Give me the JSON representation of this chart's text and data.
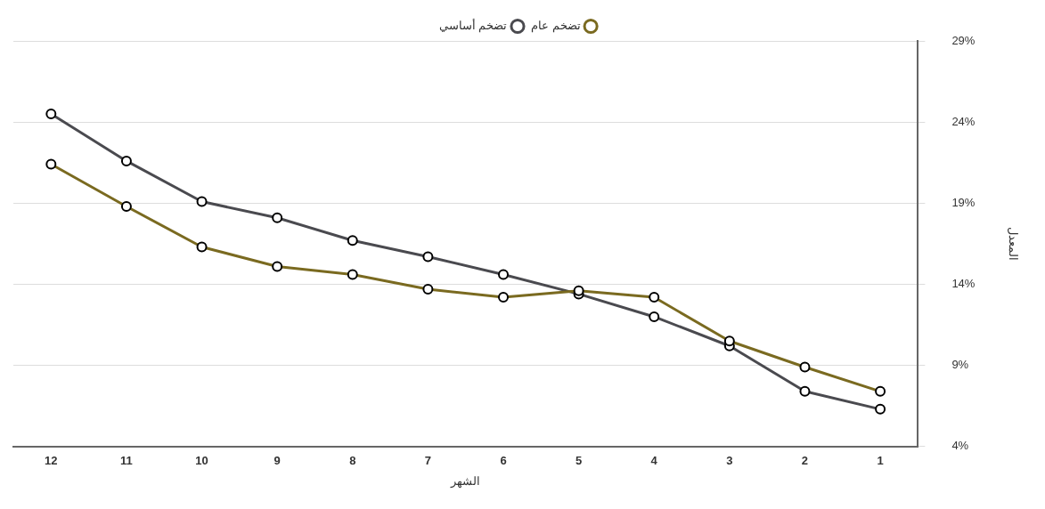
{
  "chart_data": {
    "type": "line",
    "xlabel": "الشهر",
    "ylabel": "المعدل",
    "categories": [
      "12",
      "11",
      "10",
      "9",
      "8",
      "7",
      "6",
      "5",
      "4",
      "3",
      "2",
      "1"
    ],
    "series": [
      {
        "name": "تضخم عام",
        "color": "#7a6a20",
        "values": [
          21.4,
          18.8,
          16.3,
          15.1,
          14.6,
          13.7,
          13.2,
          13.6,
          13.2,
          10.5,
          8.9,
          7.4
        ]
      },
      {
        "name": "تضخم أساسي",
        "color": "#4a4a4f",
        "values": [
          24.5,
          21.6,
          19.1,
          18.1,
          16.7,
          15.7,
          14.6,
          13.4,
          12.0,
          10.2,
          7.4,
          6.3
        ]
      }
    ],
    "ylim": [
      4,
      29
    ],
    "yticks": [
      {
        "value": 4,
        "label": "4%"
      },
      {
        "value": 9,
        "label": "9%"
      },
      {
        "value": 14,
        "label": "14%"
      },
      {
        "value": 19,
        "label": "19%"
      },
      {
        "value": 24,
        "label": "24%"
      },
      {
        "value": 29,
        "label": "29%"
      }
    ],
    "grid": "y",
    "legend": "top",
    "marker": "circle",
    "line_style": "solid"
  }
}
